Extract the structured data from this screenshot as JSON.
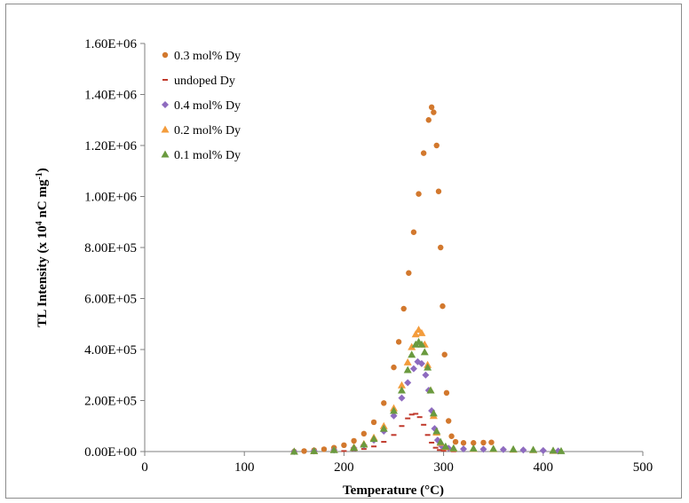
{
  "chart_data": {
    "type": "scatter",
    "xlabel": "Temperature (°C)",
    "ylabel": {
      "main": "TL Intensity (x 10",
      "sup1": "4",
      "mid": " nC mg",
      "sup2": "-1",
      "end": ")"
    },
    "xlim": [
      0,
      500
    ],
    "ylim": [
      0,
      1600000
    ],
    "x_ticks": [
      0,
      100,
      200,
      300,
      400,
      500
    ],
    "x_tick_labels": [
      "0",
      "100",
      "200",
      "300",
      "400",
      "500"
    ],
    "y_ticks": [
      0,
      200000,
      400000,
      600000,
      800000,
      1000000,
      1200000,
      1400000,
      1600000
    ],
    "y_tick_labels": [
      "0.00E+00",
      "2.00E+05",
      "4.00E+05",
      "6.00E+05",
      "8.00E+05",
      "1.00E+06",
      "1.20E+06",
      "1.40E+06",
      "1.60E+06"
    ],
    "grid": false,
    "legend_position": "top-left",
    "series": [
      {
        "name": "0.3 mol% Dy",
        "marker": "circle",
        "color": "#d2782d",
        "points": [
          [
            150,
            0
          ],
          [
            160,
            2000
          ],
          [
            170,
            5000
          ],
          [
            180,
            9000
          ],
          [
            190,
            15000
          ],
          [
            200,
            25000
          ],
          [
            210,
            42000
          ],
          [
            220,
            70000
          ],
          [
            230,
            115000
          ],
          [
            240,
            190000
          ],
          [
            250,
            330000
          ],
          [
            255,
            430000
          ],
          [
            260,
            560000
          ],
          [
            265,
            700000
          ],
          [
            270,
            860000
          ],
          [
            275,
            1010000
          ],
          [
            280,
            1170000
          ],
          [
            285,
            1300000
          ],
          [
            288,
            1350000
          ],
          [
            290,
            1330000
          ],
          [
            293,
            1200000
          ],
          [
            295,
            1020000
          ],
          [
            297,
            800000
          ],
          [
            299,
            570000
          ],
          [
            301,
            380000
          ],
          [
            303,
            230000
          ],
          [
            305,
            120000
          ],
          [
            308,
            60000
          ],
          [
            312,
            38000
          ],
          [
            320,
            34000
          ],
          [
            330,
            34000
          ],
          [
            340,
            35000
          ],
          [
            348,
            36000
          ]
        ]
      },
      {
        "name": "undoped Dy",
        "marker": "dash",
        "color": "#c0392b",
        "points": [
          [
            200,
            2000
          ],
          [
            210,
            5000
          ],
          [
            220,
            10000
          ],
          [
            230,
            20000
          ],
          [
            240,
            38000
          ],
          [
            250,
            65000
          ],
          [
            258,
            100000
          ],
          [
            264,
            130000
          ],
          [
            268,
            145000
          ],
          [
            272,
            148000
          ],
          [
            276,
            135000
          ],
          [
            280,
            105000
          ],
          [
            284,
            65000
          ],
          [
            288,
            35000
          ],
          [
            292,
            15000
          ],
          [
            296,
            6000
          ],
          [
            300,
            3000
          ],
          [
            310,
            1000
          ]
        ]
      },
      {
        "name": "0.4 mol% Dy",
        "marker": "diamond",
        "color": "#8e6bbf",
        "points": [
          [
            150,
            0
          ],
          [
            170,
            2000
          ],
          [
            190,
            6000
          ],
          [
            210,
            14000
          ],
          [
            220,
            25000
          ],
          [
            230,
            45000
          ],
          [
            240,
            80000
          ],
          [
            250,
            140000
          ],
          [
            258,
            210000
          ],
          [
            264,
            270000
          ],
          [
            270,
            325000
          ],
          [
            274,
            352000
          ],
          [
            278,
            345000
          ],
          [
            282,
            300000
          ],
          [
            285,
            240000
          ],
          [
            288,
            160000
          ],
          [
            291,
            90000
          ],
          [
            294,
            45000
          ],
          [
            298,
            22000
          ],
          [
            305,
            13000
          ],
          [
            320,
            10000
          ],
          [
            340,
            9000
          ],
          [
            360,
            8000
          ],
          [
            380,
            6000
          ],
          [
            400,
            4000
          ],
          [
            415,
            2000
          ]
        ]
      },
      {
        "name": "0.2 mol% Dy",
        "marker": "triangle",
        "color": "#f39c3c",
        "points": [
          [
            150,
            0
          ],
          [
            170,
            2000
          ],
          [
            190,
            7000
          ],
          [
            210,
            17000
          ],
          [
            220,
            30000
          ],
          [
            230,
            55000
          ],
          [
            240,
            100000
          ],
          [
            250,
            170000
          ],
          [
            258,
            260000
          ],
          [
            264,
            350000
          ],
          [
            268,
            410000
          ],
          [
            272,
            460000
          ],
          [
            275,
            478000
          ],
          [
            278,
            465000
          ],
          [
            281,
            420000
          ],
          [
            284,
            340000
          ],
          [
            287,
            240000
          ],
          [
            290,
            140000
          ],
          [
            293,
            75000
          ],
          [
            297,
            35000
          ],
          [
            302,
            18000
          ],
          [
            310,
            12000
          ],
          [
            330,
            11000
          ],
          [
            350,
            10000
          ],
          [
            370,
            8000
          ],
          [
            390,
            6000
          ],
          [
            410,
            3000
          ]
        ]
      },
      {
        "name": "0.1 mol% Dy",
        "marker": "triangle",
        "color": "#6a9a3f",
        "points": [
          [
            150,
            0
          ],
          [
            170,
            2000
          ],
          [
            190,
            6000
          ],
          [
            210,
            15000
          ],
          [
            220,
            28000
          ],
          [
            230,
            50000
          ],
          [
            240,
            90000
          ],
          [
            250,
            160000
          ],
          [
            258,
            240000
          ],
          [
            264,
            320000
          ],
          [
            268,
            380000
          ],
          [
            272,
            420000
          ],
          [
            275,
            430000
          ],
          [
            278,
            420000
          ],
          [
            281,
            390000
          ],
          [
            284,
            330000
          ],
          [
            287,
            240000
          ],
          [
            290,
            150000
          ],
          [
            293,
            80000
          ],
          [
            297,
            38000
          ],
          [
            302,
            20000
          ],
          [
            310,
            13000
          ],
          [
            330,
            12000
          ],
          [
            350,
            11000
          ],
          [
            370,
            9000
          ],
          [
            390,
            7000
          ],
          [
            410,
            4000
          ],
          [
            418,
            2000
          ]
        ]
      }
    ]
  }
}
